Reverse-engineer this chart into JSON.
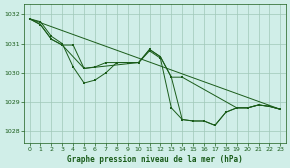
{
  "title": "Graphe pression niveau de la mer (hPa)",
  "bg_color": "#d0eee8",
  "grid_color": "#a0c8b8",
  "line_color": "#1a5c1a",
  "ylim": [
    1027.6,
    1032.35
  ],
  "xlim": [
    -0.5,
    23.5
  ],
  "yticks": [
    1028,
    1029,
    1030,
    1031,
    1032
  ],
  "xticks": [
    0,
    1,
    2,
    3,
    4,
    5,
    6,
    7,
    8,
    9,
    10,
    11,
    12,
    13,
    14,
    15,
    16,
    17,
    18,
    19,
    20,
    21,
    22,
    23
  ],
  "series1_x": [
    0,
    1,
    2,
    3,
    4,
    5,
    6,
    7,
    8,
    9,
    10,
    11,
    12,
    13,
    14,
    15,
    16,
    17,
    18,
    19,
    20,
    21,
    22,
    23
  ],
  "series1_y": [
    1031.85,
    1031.75,
    1031.25,
    1031.0,
    1030.2,
    1029.65,
    1029.75,
    1030.0,
    1030.35,
    1030.35,
    1030.35,
    1030.75,
    1030.5,
    1028.8,
    1028.4,
    1028.35,
    1028.35,
    1028.2,
    1028.65,
    1028.8,
    1028.8,
    1028.9,
    1028.85,
    1028.75
  ],
  "series2_x": [
    0,
    1,
    2,
    3,
    5,
    10,
    11,
    12,
    13,
    14,
    19,
    20,
    21,
    22,
    23
  ],
  "series2_y": [
    1031.85,
    1031.65,
    1031.15,
    1030.95,
    1030.15,
    1030.35,
    1030.8,
    1030.55,
    1029.85,
    1029.85,
    1028.8,
    1028.8,
    1028.9,
    1028.85,
    1028.75
  ],
  "series3_x": [
    0,
    23
  ],
  "series3_y": [
    1031.85,
    1028.75
  ],
  "series4_x": [
    0,
    1,
    2,
    3,
    4,
    5,
    6,
    7,
    8,
    9,
    10,
    11,
    12,
    13,
    14,
    15,
    16,
    17,
    18,
    19,
    20,
    21,
    22,
    23
  ],
  "series4_y": [
    1031.85,
    1031.65,
    1031.15,
    1030.95,
    1030.95,
    1030.15,
    1030.2,
    1030.35,
    1030.35,
    1030.35,
    1030.35,
    1030.8,
    1030.55,
    1029.85,
    1028.4,
    1028.35,
    1028.35,
    1028.2,
    1028.65,
    1028.8,
    1028.8,
    1028.9,
    1028.85,
    1028.75
  ]
}
